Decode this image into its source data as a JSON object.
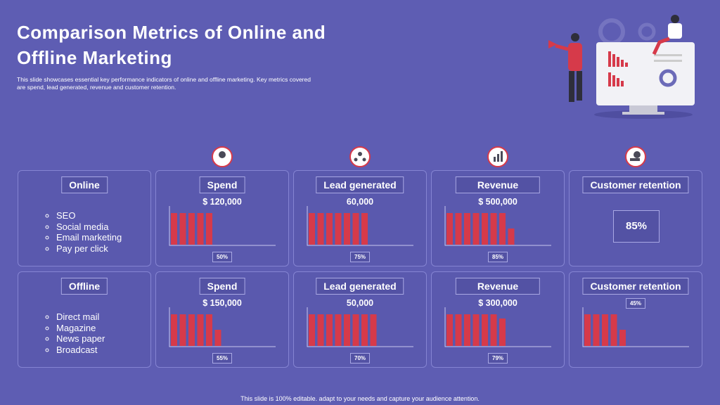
{
  "header": {
    "title": "Comparison Metrics of Online and Offline Marketing",
    "description": "This slide showcases essential key performance indicators of online and offline marketing. Key metrics covered are spend, lead generated, revenue and customer retention."
  },
  "rows": [
    {
      "label": "Online",
      "items": [
        "SEO",
        "Social media",
        "Email marketing",
        "Pay per click"
      ],
      "metrics": [
        {
          "name": "Spend",
          "value": "$ 120,000",
          "share": "50%"
        },
        {
          "name": "Lead generated",
          "value": "60,000",
          "share": "75%"
        },
        {
          "name": "Revenue",
          "value": "$ 500,000",
          "share": "85%"
        },
        {
          "name": "Customer retention",
          "value": "85%"
        }
      ]
    },
    {
      "label": "Offline",
      "items": [
        "Direct mail",
        "Magazine",
        "News paper",
        "Broadcast"
      ],
      "metrics": [
        {
          "name": "Spend",
          "value": "$ 150,000",
          "share": "55%"
        },
        {
          "name": "Lead generated",
          "value": "50,000",
          "share": "70%"
        },
        {
          "name": "Revenue",
          "value": "$ 300,000",
          "share": "79%"
        },
        {
          "name": "Customer retention",
          "share": "45%"
        }
      ]
    }
  ],
  "footer": "This slide is 100% editable. adapt to your needs and capture your audience attention."
}
